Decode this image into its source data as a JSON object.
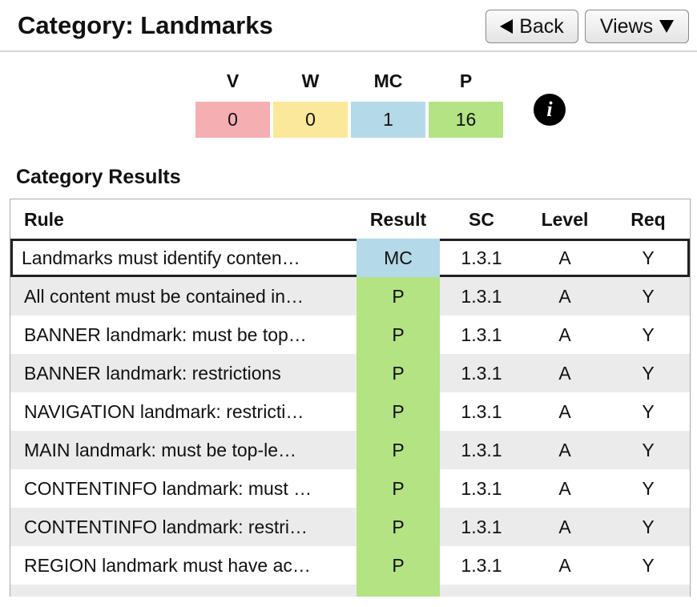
{
  "header": {
    "title": "Category: Landmarks",
    "back": "Back",
    "views": "Views"
  },
  "summary": [
    {
      "label": "V",
      "value": "0",
      "color": "#f5aeb1"
    },
    {
      "label": "W",
      "value": "0",
      "color": "#fbe89a"
    },
    {
      "label": "MC",
      "value": "1",
      "color": "#b4d9e8"
    },
    {
      "label": "P",
      "value": "16",
      "color": "#b3e382"
    }
  ],
  "info": "i",
  "section_title": "Category Results",
  "table": {
    "columns": [
      "Rule",
      "Result",
      "SC",
      "Level",
      "Req"
    ],
    "rows": [
      [
        "Landmarks must identify conten…",
        "MC",
        "1.3.1",
        "A",
        "Y"
      ],
      [
        "All content must be contained in…",
        "P",
        "1.3.1",
        "A",
        "Y"
      ],
      [
        "BANNER landmark: must be top…",
        "P",
        "1.3.1",
        "A",
        "Y"
      ],
      [
        "BANNER landmark: restrictions",
        "P",
        "1.3.1",
        "A",
        "Y"
      ],
      [
        "NAVIGATION landmark: restricti…",
        "P",
        "1.3.1",
        "A",
        "Y"
      ],
      [
        "MAIN landmark: must be top-le…",
        "P",
        "1.3.1",
        "A",
        "Y"
      ],
      [
        "CONTENTINFO landmark: must …",
        "P",
        "1.3.1",
        "A",
        "Y"
      ],
      [
        "CONTENTINFO landmark: restri…",
        "P",
        "1.3.1",
        "A",
        "Y"
      ],
      [
        "REGION landmark must have ac…",
        "P",
        "1.3.1",
        "A",
        "Y"
      ]
    ]
  }
}
